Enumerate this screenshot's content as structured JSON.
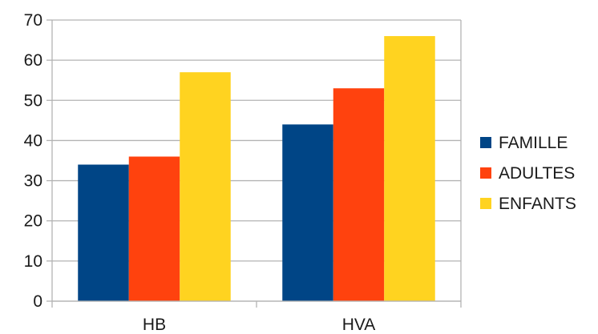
{
  "chart_data": {
    "type": "bar",
    "title": "",
    "xlabel": "",
    "ylabel": "",
    "categories": [
      "HB",
      "HVA"
    ],
    "series": [
      {
        "name": "FAMILLE",
        "color": "#004586",
        "values": [
          34,
          44
        ]
      },
      {
        "name": "ADULTES",
        "color": "#ff420e",
        "values": [
          36,
          53
        ]
      },
      {
        "name": "ENFANTS",
        "color": "#ffd320",
        "values": [
          57,
          66
        ]
      }
    ],
    "ylim": [
      0,
      70
    ],
    "yticks": [
      "0",
      "10",
      "20",
      "30",
      "40",
      "50",
      "60",
      "70"
    ],
    "grid": true,
    "legend_position": "right",
    "colors": {
      "gridline": "#b3b3b3",
      "axis": "#b3b3b3",
      "text": "#1a1a1a"
    }
  }
}
